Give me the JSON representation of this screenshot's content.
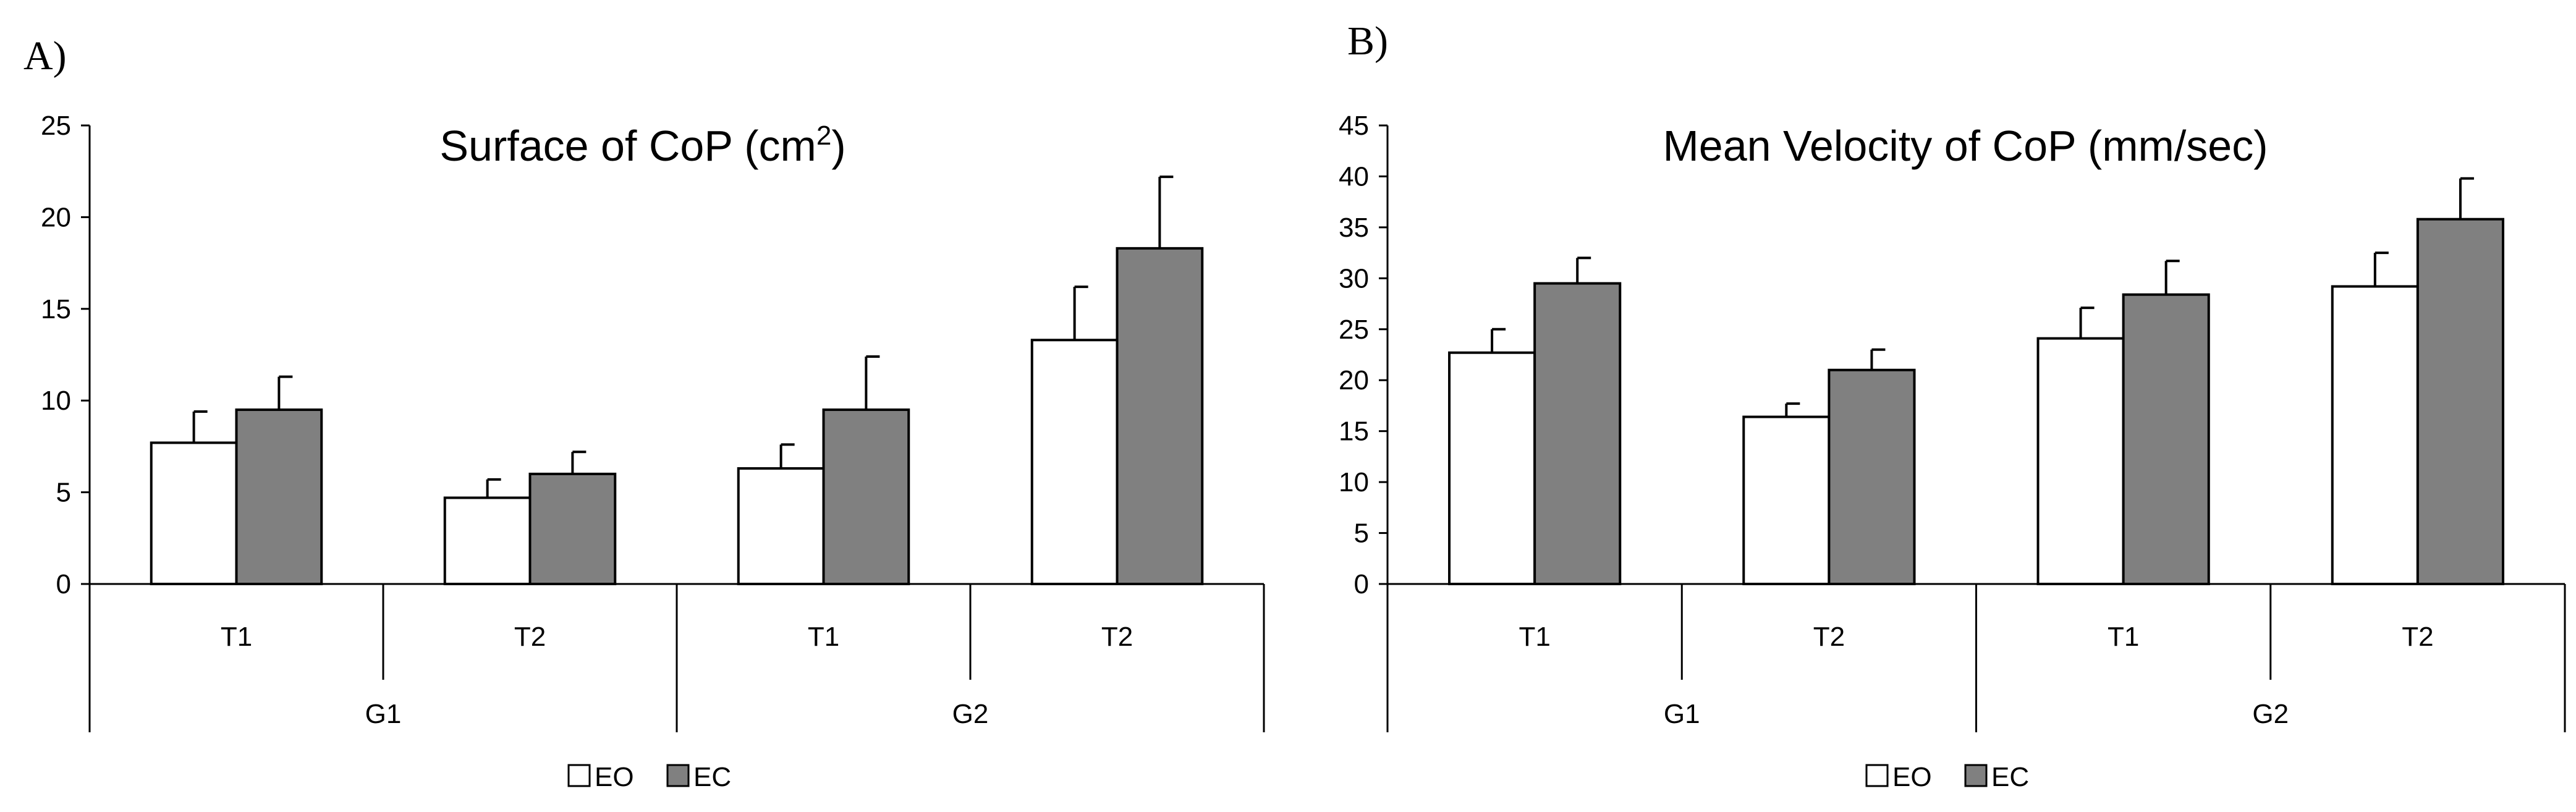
{
  "chart_data": [
    {
      "panel_label": "A)",
      "type": "bar",
      "title": "Surface of CoP (cm",
      "title_superscript": "2",
      "title_suffix": ")",
      "ylim": [
        0,
        25
      ],
      "yticks": [
        0,
        5,
        10,
        15,
        20,
        25
      ],
      "groups": [
        "G1",
        "G2"
      ],
      "subcategories": [
        "T1",
        "T2"
      ],
      "categories": [
        "G1 T1",
        "G1 T2",
        "G2 T1",
        "G2 T2"
      ],
      "series": [
        {
          "name": "EO",
          "color": "#ffffff",
          "values": [
            7.7,
            4.7,
            6.3,
            13.3
          ],
          "errors": [
            1.7,
            1.0,
            1.3,
            2.9
          ]
        },
        {
          "name": "EC",
          "color": "#808080",
          "values": [
            9.5,
            6.0,
            9.5,
            18.3
          ],
          "errors": [
            1.8,
            1.2,
            2.9,
            3.9
          ]
        }
      ],
      "legend_position": "bottom"
    },
    {
      "panel_label": "B)",
      "type": "bar",
      "title": "Mean Velocity  of  CoP (mm/sec)",
      "title_superscript": "",
      "title_suffix": "",
      "ylim": [
        0,
        45
      ],
      "yticks": [
        0,
        5,
        10,
        15,
        20,
        25,
        30,
        35,
        40,
        45
      ],
      "groups": [
        "G1",
        "G2"
      ],
      "subcategories": [
        "T1",
        "T2"
      ],
      "categories": [
        "G1 T1",
        "G1 T2",
        "G2 T1",
        "G2 T2"
      ],
      "series": [
        {
          "name": "EO",
          "color": "#ffffff",
          "values": [
            22.7,
            16.4,
            24.1,
            29.2
          ],
          "errors": [
            2.3,
            1.3,
            3.0,
            3.3
          ]
        },
        {
          "name": "EC",
          "color": "#808080",
          "values": [
            29.5,
            21.0,
            28.4,
            35.8
          ],
          "errors": [
            2.5,
            2.0,
            3.3,
            4.0
          ]
        }
      ],
      "legend_position": "bottom"
    }
  ]
}
